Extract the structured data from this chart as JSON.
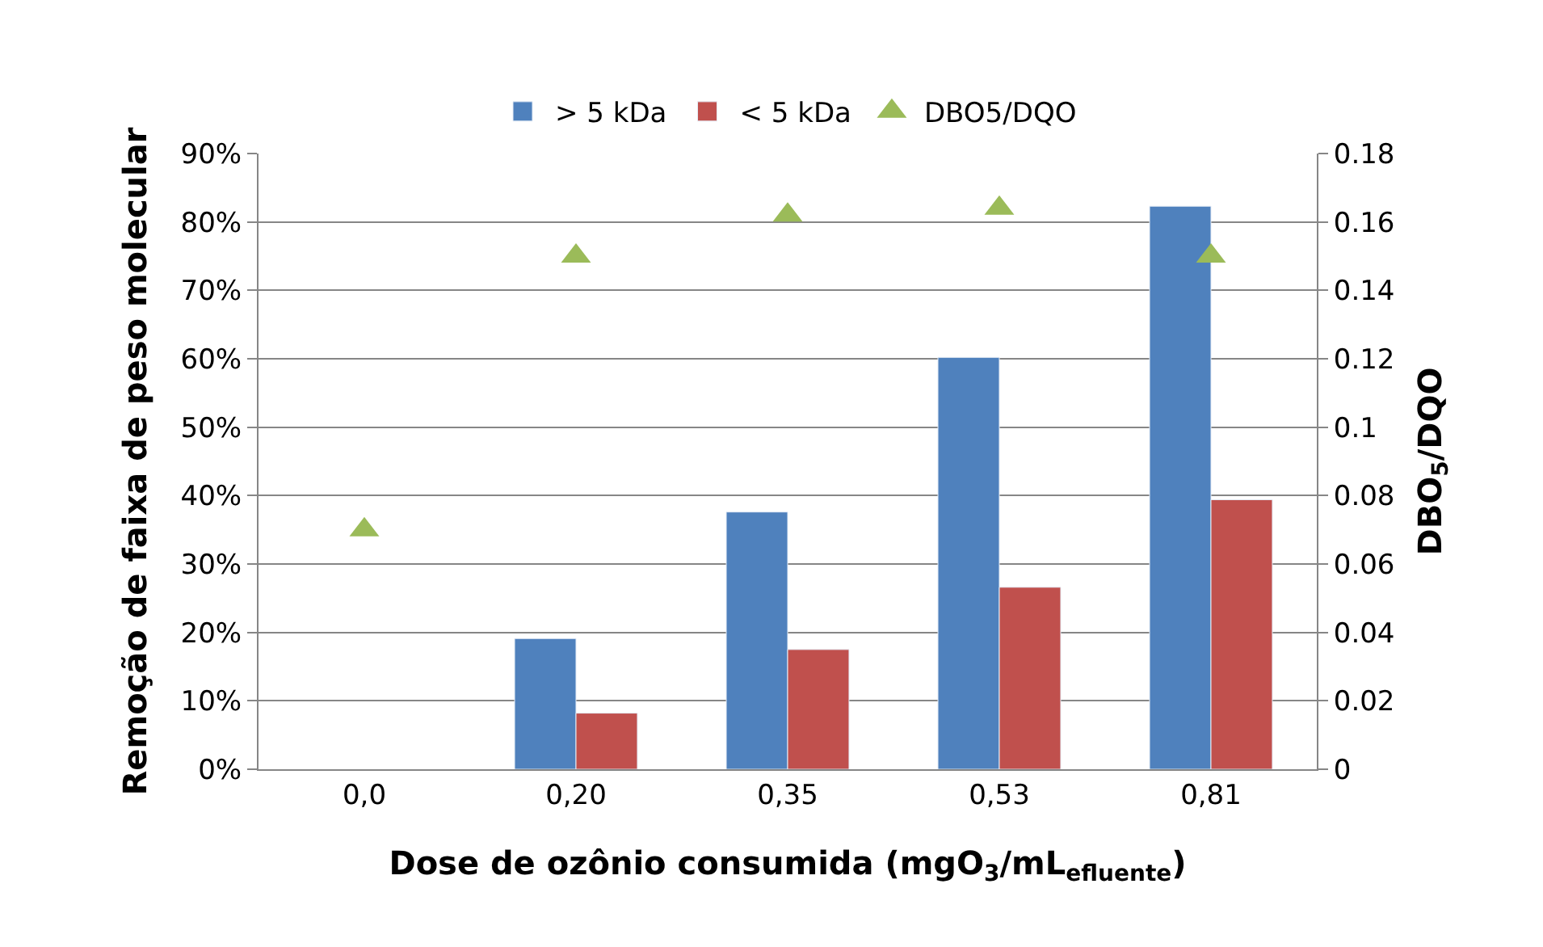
{
  "chart_data": {
    "type": "bar",
    "xlabel": "Dose de ozônio consumida (mgO$_{3}$/mL$_{efluente}$)",
    "ylabel": "Remoção de faixa de peso molecular",
    "y2label": "DBO$_{5}$/DQO",
    "categories": [
      "0,0",
      "0,20",
      "0,35",
      "0,53",
      "0,81"
    ],
    "series": [
      {
        "name": "> 5 kDa",
        "color": "#4f81bd",
        "values": [
          null,
          19.1,
          37.6,
          60.2,
          82.3
        ]
      },
      {
        "name": "< 5 kDa",
        "color": "#c0504d",
        "values": [
          null,
          8.2,
          17.5,
          26.6,
          39.4
        ]
      },
      {
        "name": "DBO5/DQO",
        "type": "scatter",
        "axis": "y2",
        "marker": "triangle",
        "color": "#9bbb59",
        "values": [
          0.07,
          0.15,
          0.162,
          0.164,
          0.15
        ]
      }
    ],
    "ylim": [
      0,
      90
    ],
    "yticks": [
      {
        "value": 0,
        "label": "0%"
      },
      {
        "value": 10,
        "label": "10%"
      },
      {
        "value": 20,
        "label": "20%"
      },
      {
        "value": 30,
        "label": "30%"
      },
      {
        "value": 40,
        "label": "40%"
      },
      {
        "value": 50,
        "label": "50%"
      },
      {
        "value": 60,
        "label": "60%"
      },
      {
        "value": 70,
        "label": "70%"
      },
      {
        "value": 80,
        "label": "80%"
      },
      {
        "value": 90,
        "label": "90%"
      }
    ],
    "y2lim": [
      0,
      0.18
    ],
    "y2ticks": [
      0,
      0.02,
      0.04,
      0.06,
      0.08,
      {
        "value": 0.1,
        "label": "0.1"
      },
      0.12,
      0.14,
      0.16,
      0.18
    ],
    "grid": "y",
    "legend": "top"
  }
}
